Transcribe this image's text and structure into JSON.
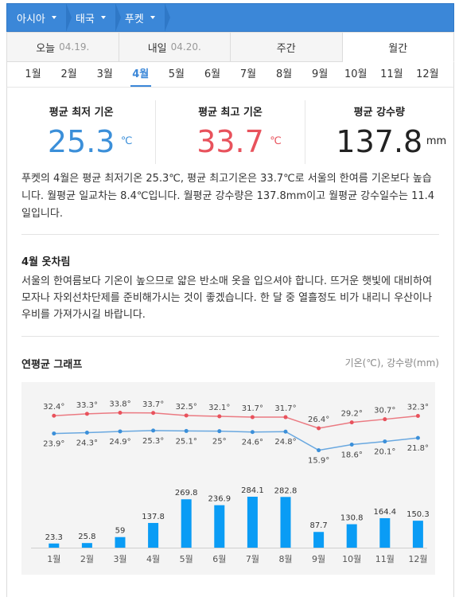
{
  "breadcrumb": [
    "아시아",
    "태국",
    "푸켓"
  ],
  "tabs": [
    {
      "label": "오늘",
      "date": "04.19."
    },
    {
      "label": "내일",
      "date": "04.20."
    },
    {
      "label": "주간",
      "date": ""
    },
    {
      "label": "월간",
      "date": ""
    }
  ],
  "months": [
    "1월",
    "2월",
    "3월",
    "4월",
    "5월",
    "6월",
    "7월",
    "8월",
    "9월",
    "10월",
    "11월",
    "12월"
  ],
  "stats": {
    "min": {
      "label": "평균 최저 기온",
      "value": "25.3",
      "unit": "℃"
    },
    "max": {
      "label": "평균 최고 기온",
      "value": "33.7",
      "unit": "℃"
    },
    "rain": {
      "label": "평균 강수량",
      "value": "137.8",
      "unit": "mm"
    }
  },
  "description": "푸켓의 4월은 평균 최저기온 25.3℃, 평균 최고기온은 33.7℃로 서울의 한여름 기온보다 높습니다. 월평균 일교차는 8.4℃입니다. 월평균 강수량은 137.8mm이고 월평균 강수일수는 11.4일입니다.",
  "clothing": {
    "title": "4월 옷차림",
    "text": "서울의 한여름보다 기온이 높으므로 얇은 반소매 옷을 입으셔야 합니다. 뜨거운 햇빛에 대비하여 모자나 자외선차단제를 준비해가시는 것이 좋겠습니다. 한 달 중 열흘정도 비가 내리니 우산이나 우비를 가져가시길 바랍니다."
  },
  "graph": {
    "title": "연평균 그래프",
    "legend": "기온(℃), 강수량(mm)"
  },
  "chart_data": {
    "type": "bar",
    "categories": [
      "1월",
      "2월",
      "3월",
      "4월",
      "5월",
      "6월",
      "7월",
      "8월",
      "9월",
      "10월",
      "11월",
      "12월"
    ],
    "series": [
      {
        "name": "최고 기온",
        "type": "line",
        "color": "#e8525c",
        "values": [
          32.4,
          33.3,
          33.8,
          33.7,
          32.5,
          32.1,
          31.7,
          31.7,
          26.4,
          29.2,
          30.7,
          32.3
        ],
        "labels": [
          "32.4°",
          "33.3°",
          "33.8°",
          "33.7°",
          "32.5°",
          "32.1°",
          "31.7°",
          "31.7°",
          "26.4°",
          "29.2°",
          "30.7°",
          "32.3°"
        ]
      },
      {
        "name": "최저 기온",
        "type": "line",
        "color": "#3b8fd9",
        "values": [
          23.9,
          24.3,
          24.9,
          25.3,
          25.1,
          25,
          24.6,
          24.8,
          15.9,
          18.6,
          20.1,
          21.8
        ],
        "labels": [
          "23.9°",
          "24.3°",
          "24.9°",
          "25.3°",
          "25.1°",
          "25°",
          "24.6°",
          "24.8°",
          "15.9°",
          "18.6°",
          "20.1°",
          "21.8°"
        ]
      },
      {
        "name": "강수량",
        "type": "bar",
        "color": "#0a9cf5",
        "values": [
          23.3,
          25.8,
          59,
          137.8,
          269.8,
          236.9,
          284.1,
          282.8,
          87.7,
          130.8,
          164.4,
          150.3
        ],
        "labels": [
          "23.3",
          "25.8",
          "59",
          "137.8",
          "269.8",
          "236.9",
          "284.1",
          "282.8",
          "87.7",
          "130.8",
          "164.4",
          "150.3"
        ]
      }
    ],
    "grid": false
  }
}
